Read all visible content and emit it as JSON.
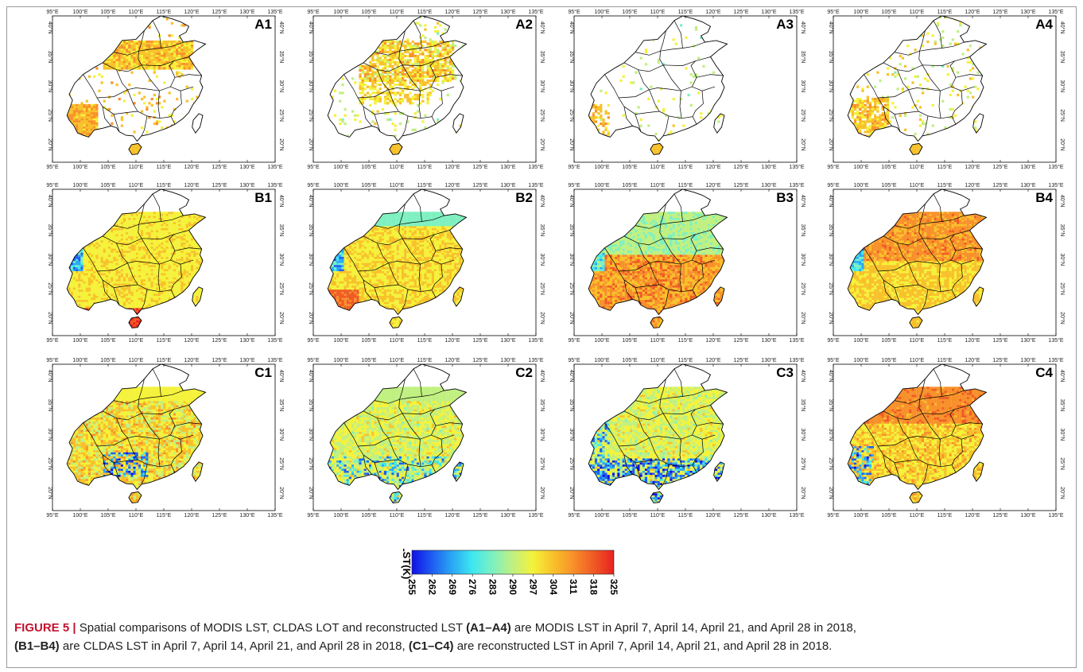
{
  "panels": [
    {
      "label": "A1",
      "scheme": "modis_a1"
    },
    {
      "label": "A2",
      "scheme": "modis_a2"
    },
    {
      "label": "A3",
      "scheme": "modis_a3"
    },
    {
      "label": "A4",
      "scheme": "modis_a4"
    },
    {
      "label": "B1",
      "scheme": "full_b1"
    },
    {
      "label": "B2",
      "scheme": "full_b2"
    },
    {
      "label": "B3",
      "scheme": "full_b3"
    },
    {
      "label": "B4",
      "scheme": "full_b4"
    },
    {
      "label": "C1",
      "scheme": "full_c1"
    },
    {
      "label": "C2",
      "scheme": "full_c2"
    },
    {
      "label": "C3",
      "scheme": "full_c3"
    },
    {
      "label": "C4",
      "scheme": "full_c4"
    }
  ],
  "axes": {
    "lon_ticks": [
      "95°E",
      "100°E",
      "105°E",
      "110°E",
      "115°E",
      "120°E",
      "125°E",
      "130°E",
      "135°E"
    ],
    "lat_ticks": [
      "40°N",
      "35°N",
      "30°N",
      "25°N",
      "20°N"
    ]
  },
  "colorbar": {
    "title": "LST(K)",
    "ticks": [
      "255",
      "262",
      "269",
      "276",
      "283",
      "290",
      "297",
      "304",
      "311",
      "318",
      "325"
    ],
    "colors": [
      "#1010e8",
      "#1f5df0",
      "#2aa8f4",
      "#3ee8f0",
      "#7ef0c0",
      "#c0f080",
      "#f4f23a",
      "#f8c12a",
      "#f8902a",
      "#f05a24",
      "#e82222"
    ]
  },
  "caption": {
    "figure_label": "FIGURE 5",
    "separator": "|",
    "part1": " Spatial comparisons of MODIS LST, CLDAS LOT and reconstructed LST ",
    "ref_a": "(A1–A4)",
    "part2": " are MODIS LST in April 7, April 14, April 21, and April 28 in 2018,",
    "ref_b": "(B1–B4)",
    "part3": " are CLDAS LST in April 7, April 14, April 21, and April 28 in 2018, ",
    "ref_c": "(C1–C4)",
    "part4": " are reconstructed LST in April 7, April 14, April 21, and April 28 in 2018."
  }
}
